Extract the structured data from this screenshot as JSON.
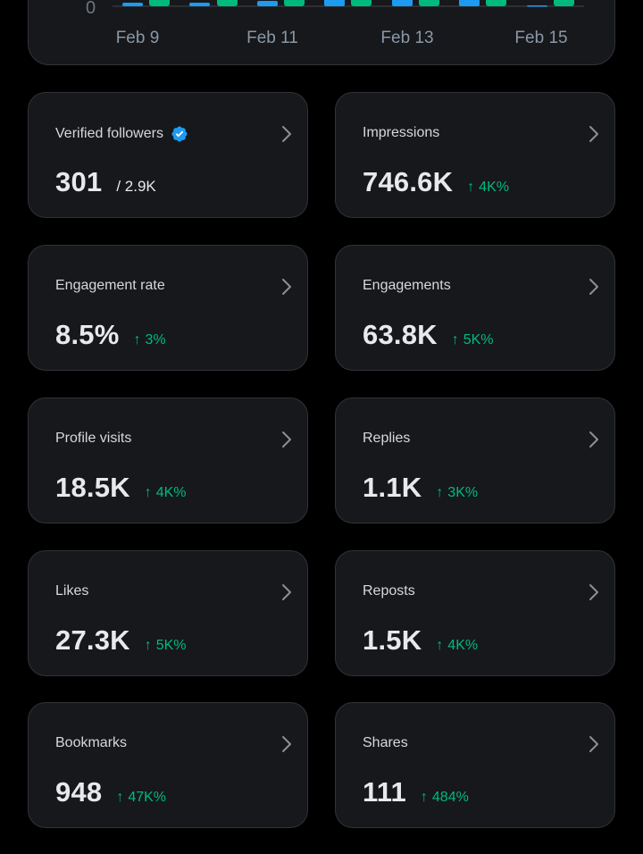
{
  "chart": {
    "y_zero_label": "0",
    "x_labels": [
      "Feb 9",
      "Feb 11",
      "Feb 13",
      "Feb 15"
    ],
    "colors": {
      "blue": "#1d9bf0",
      "green": "#00ba7c"
    }
  },
  "chart_data": {
    "type": "bar",
    "xlabel": "",
    "ylabel": "",
    "tick_labels": [
      "Feb 9",
      "Feb 11",
      "Feb 13",
      "Feb 15"
    ]
  },
  "cards": [
    {
      "title": "Verified followers",
      "verified": true,
      "value": "301",
      "subvalue": "/ 2.9K",
      "change": ""
    },
    {
      "title": "Impressions",
      "value": "746.6K",
      "change": "4K%"
    },
    {
      "title": "Engagement rate",
      "value": "8.5%",
      "change": "3%"
    },
    {
      "title": "Engagements",
      "value": "63.8K",
      "change": "5K%"
    },
    {
      "title": "Profile visits",
      "value": "18.5K",
      "change": "4K%"
    },
    {
      "title": "Replies",
      "value": "1.1K",
      "change": "3K%"
    },
    {
      "title": "Likes",
      "value": "27.3K",
      "change": "5K%"
    },
    {
      "title": "Reposts",
      "value": "1.5K",
      "change": "4K%"
    },
    {
      "title": "Bookmarks",
      "value": "948",
      "change": "47K%"
    },
    {
      "title": "Shares",
      "value": "111",
      "change": "484%"
    }
  ],
  "change_arrow": "↑",
  "icons": {
    "verified": "verified-badge-icon",
    "chevron": "chevron-right-icon"
  }
}
